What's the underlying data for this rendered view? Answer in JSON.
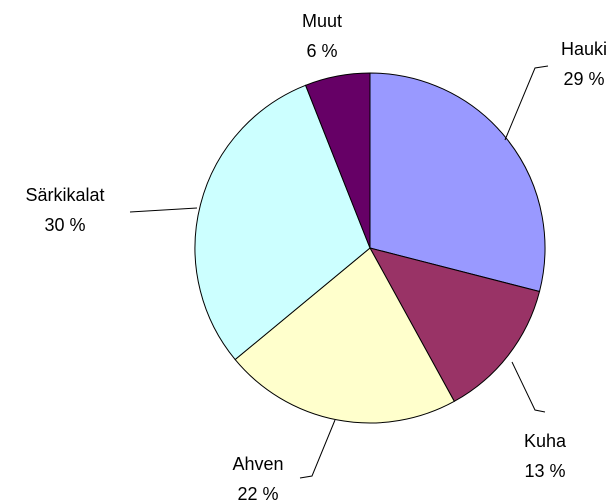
{
  "chart_data": {
    "type": "pie",
    "categories": [
      "Hauki",
      "Kuha",
      "Ahven",
      "Särkikalat",
      "Muut"
    ],
    "values": [
      29,
      13,
      22,
      30,
      6
    ],
    "value_labels": [
      "29 %",
      "13 %",
      "22 %",
      "30 %",
      "6 %"
    ],
    "colors": [
      "#9999ff",
      "#993366",
      "#ffffcc",
      "#ccffff",
      "#660066"
    ]
  }
}
